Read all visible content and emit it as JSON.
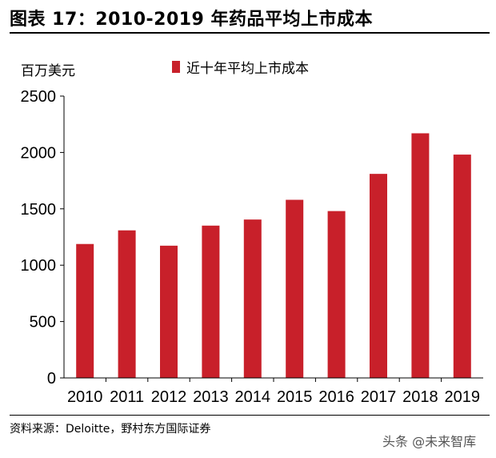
{
  "title": "图表 17：2010-2019 年药品平均上市成本",
  "unit_label": "百万美元",
  "source": "资料来源：Deloitte，野村东方国际证券",
  "watermark": "头条 @未来智库",
  "colors": {
    "bar": "#c8202a"
  },
  "chart_data": {
    "type": "bar",
    "categories": [
      "2010",
      "2011",
      "2012",
      "2013",
      "2014",
      "2015",
      "2016",
      "2017",
      "2018",
      "2019"
    ],
    "series": [
      {
        "name": "近十年平均上市成本",
        "values": [
          1188,
          1309,
          1173,
          1351,
          1405,
          1580,
          1480,
          1810,
          2170,
          1981
        ]
      }
    ],
    "ylim": [
      0,
      2500
    ],
    "yticks": [
      0,
      500,
      1000,
      1500,
      2000,
      2500
    ],
    "legend": "top"
  }
}
